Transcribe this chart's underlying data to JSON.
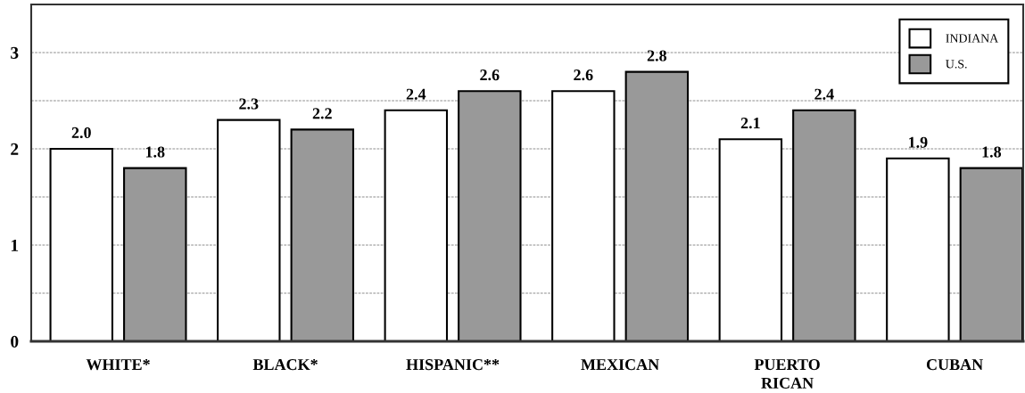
{
  "chart_data": {
    "type": "bar",
    "categories": [
      "WHITE*",
      "BLACK*",
      "HISPANIC**",
      "MEXICAN",
      "PUERTO RICAN",
      "CUBAN"
    ],
    "series": [
      {
        "name": "INDIANA",
        "color": "#ffffff",
        "values": [
          2.0,
          2.3,
          2.4,
          2.6,
          2.1,
          1.9
        ],
        "value_labels": [
          "2.0",
          "2.3",
          "2.4",
          "2.6",
          "2.1",
          "1.9"
        ]
      },
      {
        "name": "U.S.",
        "color": "#999999",
        "values": [
          1.8,
          2.2,
          2.6,
          2.8,
          2.4,
          1.8
        ],
        "value_labels": [
          "1.8",
          "2.2",
          "2.6",
          "2.8",
          "2.4",
          "1.8"
        ]
      }
    ],
    "ylim": [
      0,
      3.5
    ],
    "yticks": [
      0,
      {
        "value": 0.5,
        "label": null
      },
      1,
      {
        "value": 1.5,
        "label": null
      },
      2,
      {
        "value": 2.5,
        "label": null
      },
      3
    ],
    "grid": "y",
    "legend": "top right"
  }
}
